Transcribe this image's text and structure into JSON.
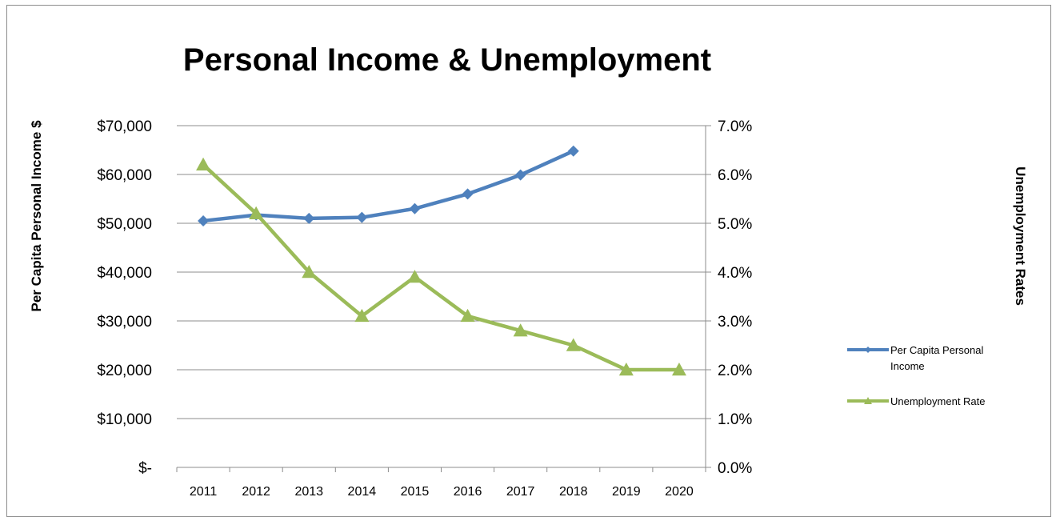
{
  "chart_data": {
    "type": "line",
    "title": "Personal Income & Unemployment",
    "ylabel": "Per Capita Personal Income $",
    "y2label": "Unemployment Rates",
    "x": [
      "2011",
      "2012",
      "2013",
      "2014",
      "2015",
      "2016",
      "2017",
      "2018",
      "2019",
      "2020"
    ],
    "y_ticks": [
      "$-",
      "$10,000",
      "$20,000",
      "$30,000",
      "$40,000",
      "$50,000",
      "$60,000",
      "$70,000"
    ],
    "y2_ticks": [
      "0.0%",
      "1.0%",
      "2.0%",
      "3.0%",
      "4.0%",
      "5.0%",
      "6.0%",
      "7.0%"
    ],
    "ylim": [
      0,
      70000
    ],
    "y2lim": [
      0,
      7.0
    ],
    "grid": true,
    "legend_position": "right",
    "series": [
      {
        "name": "Per Capita Personal Income",
        "axis": "left",
        "color": "#4f81bd",
        "marker": "diamond",
        "values": [
          50500,
          51700,
          51000,
          51200,
          53000,
          56000,
          59900,
          64800,
          null,
          null
        ]
      },
      {
        "name": "Unemployment Rate",
        "axis": "right",
        "color": "#9bbb59",
        "marker": "triangle",
        "values": [
          6.2,
          5.2,
          4.0,
          3.1,
          3.9,
          3.1,
          2.8,
          2.5,
          2.0,
          2.0
        ]
      }
    ],
    "legend_lines": [
      [
        "Per Capita Personal",
        "Income"
      ],
      [
        "Unemployment Rate"
      ]
    ]
  }
}
